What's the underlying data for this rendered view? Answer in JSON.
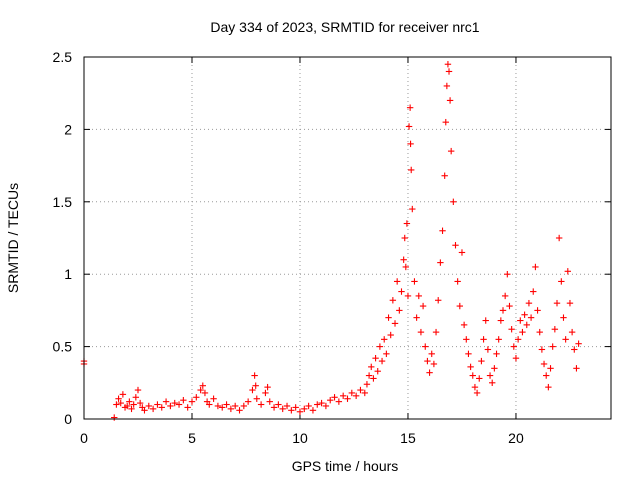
{
  "chart_data": {
    "type": "scatter",
    "title": "Day 334 of 2023, SRMTID for receiver nrc1",
    "xlabel": "GPS time / hours",
    "ylabel": "SRMTID / TECUs",
    "xlim": [
      0,
      24.4
    ],
    "ylim": [
      0,
      2.5
    ],
    "x_ticks": [
      0,
      5,
      10,
      15,
      20
    ],
    "x_tick_labels": [
      "0",
      "5",
      "10",
      "15",
      "20"
    ],
    "y_ticks": [
      0,
      0.5,
      1,
      1.5,
      2,
      2.5
    ],
    "y_tick_labels": [
      "0",
      "0.5",
      "1",
      "1.5",
      "2",
      "2.5"
    ],
    "grid": true,
    "marker": "+",
    "series": [
      {
        "name": "SRMTID",
        "color": "#ff0000",
        "points": [
          [
            0.0,
            0.4
          ],
          [
            0.0,
            0.38
          ],
          [
            1.4,
            0.01
          ],
          [
            1.5,
            0.1
          ],
          [
            1.6,
            0.14
          ],
          [
            1.7,
            0.11
          ],
          [
            1.8,
            0.17
          ],
          [
            1.9,
            0.08
          ],
          [
            2.0,
            0.09
          ],
          [
            2.1,
            0.12
          ],
          [
            2.2,
            0.07
          ],
          [
            2.3,
            0.1
          ],
          [
            2.4,
            0.15
          ],
          [
            2.5,
            0.2
          ],
          [
            2.6,
            0.11
          ],
          [
            2.7,
            0.08
          ],
          [
            2.8,
            0.06
          ],
          [
            3.0,
            0.09
          ],
          [
            3.2,
            0.07
          ],
          [
            3.4,
            0.1
          ],
          [
            3.6,
            0.08
          ],
          [
            3.8,
            0.12
          ],
          [
            4.0,
            0.09
          ],
          [
            4.2,
            0.11
          ],
          [
            4.4,
            0.1
          ],
          [
            4.6,
            0.13
          ],
          [
            4.8,
            0.08
          ],
          [
            5.0,
            0.12
          ],
          [
            5.2,
            0.15
          ],
          [
            5.4,
            0.2
          ],
          [
            5.5,
            0.23
          ],
          [
            5.6,
            0.18
          ],
          [
            5.7,
            0.12
          ],
          [
            5.8,
            0.1
          ],
          [
            6.0,
            0.14
          ],
          [
            6.2,
            0.09
          ],
          [
            6.4,
            0.08
          ],
          [
            6.6,
            0.1
          ],
          [
            6.8,
            0.07
          ],
          [
            7.0,
            0.09
          ],
          [
            7.2,
            0.06
          ],
          [
            7.4,
            0.09
          ],
          [
            7.6,
            0.12
          ],
          [
            7.8,
            0.2
          ],
          [
            7.9,
            0.3
          ],
          [
            7.95,
            0.23
          ],
          [
            8.0,
            0.14
          ],
          [
            8.2,
            0.1
          ],
          [
            8.4,
            0.18
          ],
          [
            8.5,
            0.22
          ],
          [
            8.6,
            0.12
          ],
          [
            8.8,
            0.08
          ],
          [
            9.0,
            0.1
          ],
          [
            9.2,
            0.07
          ],
          [
            9.4,
            0.09
          ],
          [
            9.6,
            0.06
          ],
          [
            9.8,
            0.08
          ],
          [
            10.0,
            0.05
          ],
          [
            10.2,
            0.07
          ],
          [
            10.4,
            0.09
          ],
          [
            10.6,
            0.06
          ],
          [
            10.8,
            0.1
          ],
          [
            11.0,
            0.11
          ],
          [
            11.2,
            0.09
          ],
          [
            11.4,
            0.13
          ],
          [
            11.6,
            0.15
          ],
          [
            11.8,
            0.12
          ],
          [
            12.0,
            0.16
          ],
          [
            12.2,
            0.14
          ],
          [
            12.4,
            0.18
          ],
          [
            12.6,
            0.16
          ],
          [
            12.8,
            0.2
          ],
          [
            13.0,
            0.18
          ],
          [
            13.1,
            0.24
          ],
          [
            13.2,
            0.3
          ],
          [
            13.3,
            0.36
          ],
          [
            13.4,
            0.28
          ],
          [
            13.5,
            0.42
          ],
          [
            13.6,
            0.33
          ],
          [
            13.7,
            0.5
          ],
          [
            13.8,
            0.4
          ],
          [
            13.9,
            0.55
          ],
          [
            14.0,
            0.45
          ],
          [
            14.1,
            0.7
          ],
          [
            14.2,
            0.58
          ],
          [
            14.3,
            0.82
          ],
          [
            14.4,
            0.66
          ],
          [
            14.5,
            0.95
          ],
          [
            14.6,
            0.75
          ],
          [
            14.7,
            0.88
          ],
          [
            14.8,
            1.1
          ],
          [
            14.85,
            1.25
          ],
          [
            14.9,
            1.05
          ],
          [
            14.95,
            1.35
          ],
          [
            15.0,
            0.85
          ],
          [
            15.05,
            2.02
          ],
          [
            15.1,
            2.15
          ],
          [
            15.12,
            1.9
          ],
          [
            15.15,
            1.72
          ],
          [
            15.2,
            1.45
          ],
          [
            15.3,
            0.95
          ],
          [
            15.4,
            0.7
          ],
          [
            15.5,
            0.85
          ],
          [
            15.6,
            0.6
          ],
          [
            15.7,
            0.78
          ],
          [
            15.8,
            0.5
          ],
          [
            15.9,
            0.4
          ],
          [
            16.0,
            0.32
          ],
          [
            16.1,
            0.45
          ],
          [
            16.2,
            0.38
          ],
          [
            16.3,
            0.6
          ],
          [
            16.4,
            0.82
          ],
          [
            16.5,
            1.08
          ],
          [
            16.6,
            1.3
          ],
          [
            16.7,
            1.68
          ],
          [
            16.75,
            2.05
          ],
          [
            16.8,
            2.3
          ],
          [
            16.85,
            2.45
          ],
          [
            16.9,
            2.4
          ],
          [
            16.95,
            2.2
          ],
          [
            17.0,
            1.85
          ],
          [
            17.1,
            1.5
          ],
          [
            17.2,
            1.2
          ],
          [
            17.3,
            0.95
          ],
          [
            17.4,
            0.78
          ],
          [
            17.5,
            1.15
          ],
          [
            17.6,
            0.65
          ],
          [
            17.7,
            0.55
          ],
          [
            17.8,
            0.45
          ],
          [
            17.9,
            0.36
          ],
          [
            18.0,
            0.3
          ],
          [
            18.1,
            0.22
          ],
          [
            18.2,
            0.18
          ],
          [
            18.3,
            0.28
          ],
          [
            18.4,
            0.4
          ],
          [
            18.5,
            0.55
          ],
          [
            18.6,
            0.68
          ],
          [
            18.7,
            0.48
          ],
          [
            18.8,
            0.3
          ],
          [
            18.9,
            0.25
          ],
          [
            19.0,
            0.35
          ],
          [
            19.1,
            0.45
          ],
          [
            19.2,
            0.55
          ],
          [
            19.3,
            0.68
          ],
          [
            19.4,
            0.75
          ],
          [
            19.5,
            0.85
          ],
          [
            19.6,
            1.0
          ],
          [
            19.7,
            0.78
          ],
          [
            19.8,
            0.62
          ],
          [
            19.9,
            0.5
          ],
          [
            20.0,
            0.42
          ],
          [
            20.1,
            0.55
          ],
          [
            20.2,
            0.68
          ],
          [
            20.3,
            0.6
          ],
          [
            20.4,
            0.72
          ],
          [
            20.5,
            0.65
          ],
          [
            20.6,
            0.8
          ],
          [
            20.7,
            0.7
          ],
          [
            20.8,
            0.88
          ],
          [
            20.9,
            1.05
          ],
          [
            21.0,
            0.75
          ],
          [
            21.1,
            0.6
          ],
          [
            21.2,
            0.48
          ],
          [
            21.3,
            0.38
          ],
          [
            21.4,
            0.3
          ],
          [
            21.5,
            0.22
          ],
          [
            21.6,
            0.35
          ],
          [
            21.7,
            0.5
          ],
          [
            21.8,
            0.62
          ],
          [
            21.9,
            0.8
          ],
          [
            22.0,
            1.25
          ],
          [
            22.1,
            0.95
          ],
          [
            22.2,
            0.7
          ],
          [
            22.3,
            0.55
          ],
          [
            22.4,
            1.02
          ],
          [
            22.5,
            0.8
          ],
          [
            22.6,
            0.6
          ],
          [
            22.7,
            0.48
          ],
          [
            22.8,
            0.35
          ],
          [
            22.9,
            0.52
          ]
        ]
      }
    ]
  }
}
